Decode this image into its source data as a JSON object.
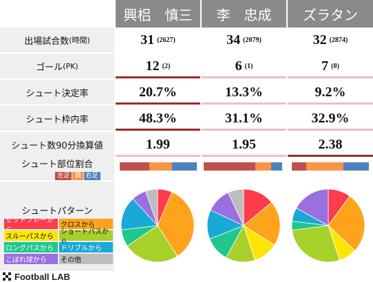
{
  "players": [
    {
      "name": "興梠　慎三"
    },
    {
      "name": "李　忠成"
    },
    {
      "name": "ズラタン"
    }
  ],
  "rows": [
    {
      "label": "出場試合数",
      "label_small": "(時間)",
      "values": [
        "31",
        "34",
        "32"
      ],
      "subs": [
        "(2627)",
        "(2079)",
        "(2874)"
      ]
    },
    {
      "label": "ゴール",
      "label_small": "(PK)",
      "values": [
        "12",
        "6",
        "7"
      ],
      "subs": [
        "(2)",
        "(1)",
        "(0)"
      ]
    },
    {
      "label": "シュート決定率",
      "label_small": "",
      "values": [
        "20.7%",
        "13.3%",
        "9.2%"
      ],
      "subs": [
        "",
        "",
        ""
      ]
    },
    {
      "label": "シュート枠内率",
      "label_small": "",
      "values": [
        "48.3%",
        "31.1%",
        "32.9%"
      ],
      "subs": [
        "",
        "",
        ""
      ]
    },
    {
      "label": "シュート数90分換算値",
      "label_small": "",
      "values": [
        "1.99",
        "1.95",
        "2.38"
      ],
      "subs": [
        "",
        "",
        ""
      ]
    }
  ],
  "bar_highlight_color": "#a0282d",
  "bar_light_color": "#e8c0c4",
  "body_part": {
    "title": "シュート部位割合",
    "legend": [
      {
        "label": "左足",
        "color": "#c0504d"
      },
      {
        "label": "頭",
        "color": "#f79646"
      },
      {
        "label": "右足",
        "color": "#4f81bd"
      }
    ]
  },
  "shot_pattern": {
    "title": "シュートパターン",
    "legend": [
      {
        "label": "セットプレーから",
        "color": "#ff3b4e"
      },
      {
        "label": "クロスから",
        "color": "#ffa31a"
      },
      {
        "label": "スルーパスから",
        "color": "#ffe600"
      },
      {
        "label": "ショートパスから",
        "color": "#a8d02a"
      },
      {
        "label": "ロングパスから",
        "color": "#1fc88a"
      },
      {
        "label": "ドリブルから",
        "color": "#1aa8d6"
      },
      {
        "label": "こぼれ球から",
        "color": "#9a6fe0"
      },
      {
        "label": "その他",
        "color": "#bdbdbd"
      }
    ]
  },
  "brand": {
    "name": "Football LAB"
  },
  "chart_data": [
    {
      "type": "bar",
      "title": "シュート部位割合",
      "categories": [
        "興梠　慎三",
        "李　忠成",
        "ズラタン"
      ],
      "series": [
        {
          "name": "左足",
          "values": [
            38,
            66,
            19
          ]
        },
        {
          "name": "頭",
          "values": [
            30,
            20,
            48
          ]
        },
        {
          "name": "右足",
          "values": [
            32,
            14,
            33
          ]
        }
      ]
    },
    {
      "type": "pie",
      "title": "シュートパターン",
      "categories": [
        "興梠　慎三",
        "李　忠成",
        "ズラタン"
      ],
      "labels": [
        "セットプレーから",
        "クロスから",
        "スルーパスから",
        "ショートパスから",
        "ロングパスから",
        "ドリブルから",
        "こぼれ球から",
        "その他"
      ],
      "series": [
        {
          "name": "興梠　慎三",
          "values": [
            6,
            32,
            0,
            23,
            7,
            14,
            6,
            5
          ]
        },
        {
          "name": "李　忠成",
          "values": [
            14,
            20,
            11,
            13,
            11,
            13,
            11,
            7
          ]
        },
        {
          "name": "ズラタン",
          "values": [
            10,
            27,
            8,
            28,
            4,
            6,
            17,
            0
          ]
        }
      ]
    }
  ]
}
